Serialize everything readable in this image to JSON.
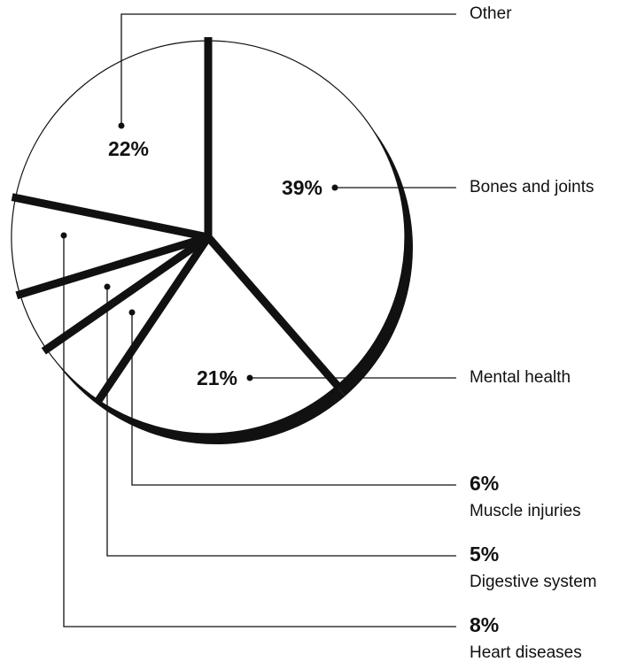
{
  "chart_data": {
    "type": "pie",
    "categories": [
      "Bones and joints",
      "Mental health",
      "Muscle injuries",
      "Digestive system",
      "Heart diseases",
      "Other"
    ],
    "values": [
      39,
      21,
      6,
      5,
      8,
      22
    ],
    "value_labels": [
      "39%",
      "21%",
      "6%",
      "5%",
      "8%",
      "22%"
    ],
    "colors": [
      "#ffffff",
      "#ffffff",
      "#ffffff",
      "#ffffff",
      "#ffffff",
      "#ffffff"
    ]
  }
}
